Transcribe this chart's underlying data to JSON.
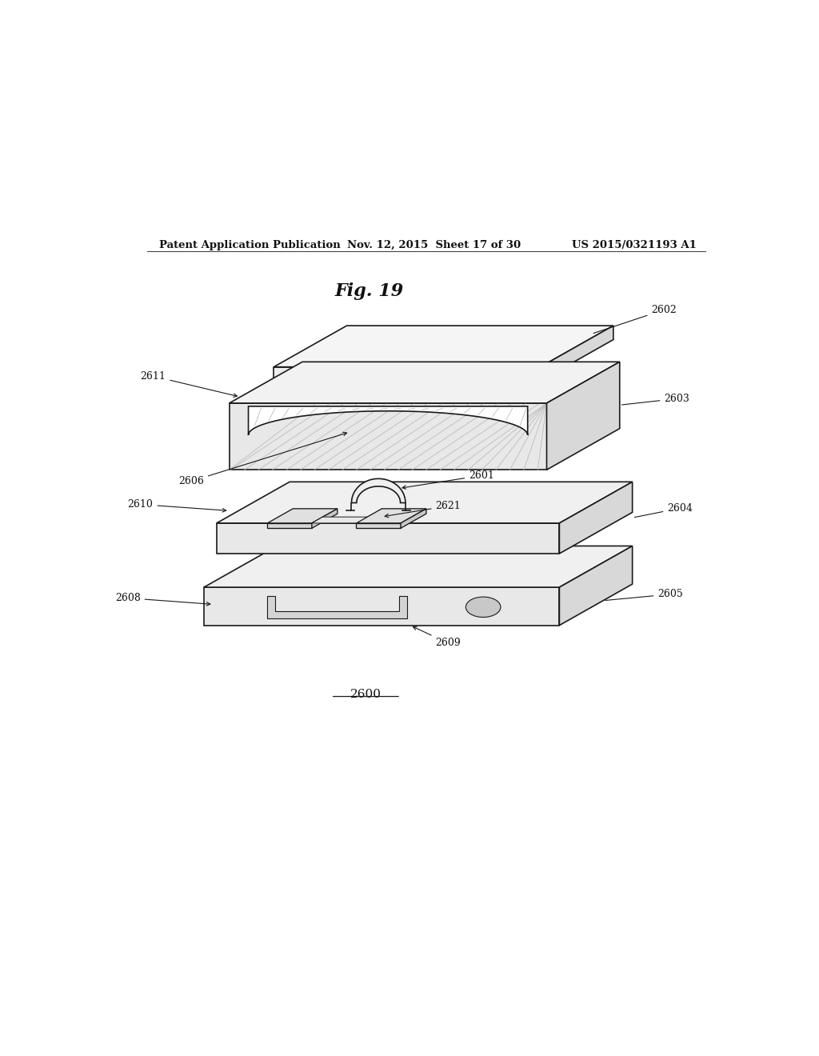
{
  "title": "Fig. 19",
  "header_left": "Patent Application Publication",
  "header_center": "Nov. 12, 2015  Sheet 17 of 30",
  "header_right": "US 2015/0321193 A1",
  "footer_label": "2600",
  "bg_color": "#ffffff",
  "line_color": "#1a1a1a"
}
